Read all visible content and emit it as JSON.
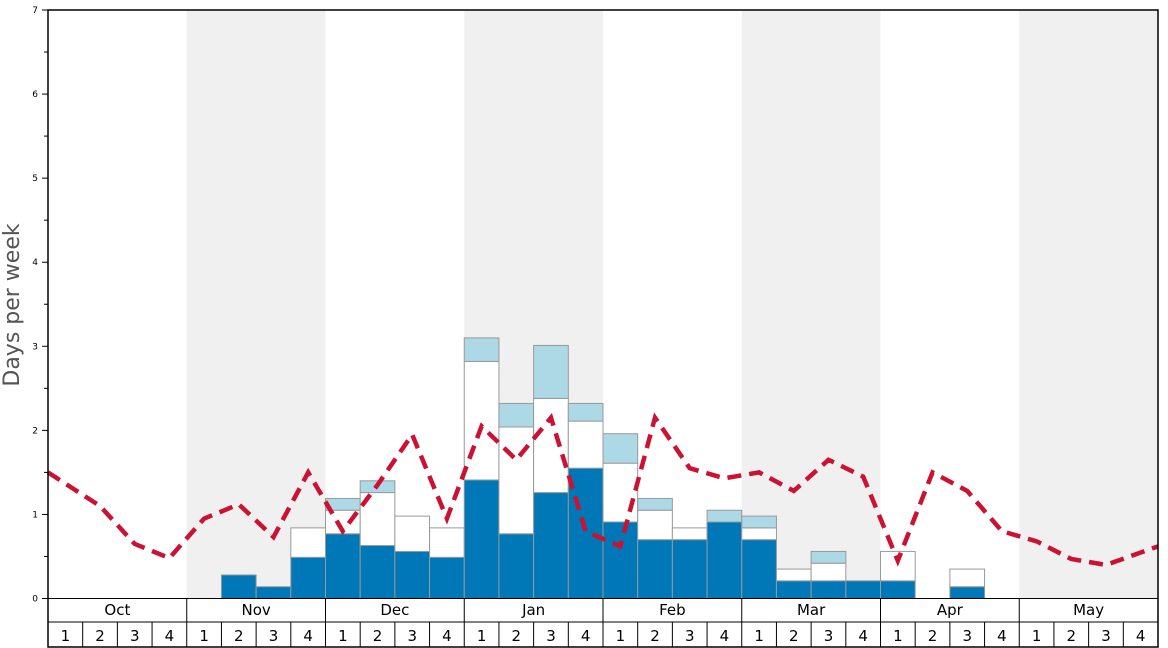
{
  "chart_data": {
    "type": "bar",
    "ylabel": "Days per week",
    "ylim": [
      0,
      7
    ],
    "yticks": [
      0,
      1,
      2,
      3,
      4,
      5,
      6,
      7
    ],
    "months": [
      "Oct",
      "Nov",
      "Dec",
      "Jan",
      "Feb",
      "Mar",
      "Apr",
      "May"
    ],
    "weeks": [
      "1",
      "2",
      "3",
      "4"
    ],
    "shaded_months": [
      "Nov",
      "Jan",
      "Mar",
      "May"
    ],
    "colors": {
      "dark": "#0077b6",
      "white": "#ffffff",
      "light": "#add8e6",
      "line": "#cc1133",
      "shade": "#f0f0f0"
    },
    "series": [
      {
        "values": [
          0,
          0,
          0,
          0,
          0,
          0.28,
          0.14,
          0.49,
          0.77,
          0.63,
          0.56,
          0.49,
          1.41,
          0.77,
          1.26,
          1.55,
          0.91,
          0.7,
          0.7,
          0.91,
          0.7,
          0.21,
          0.21,
          0.21,
          0.21,
          0,
          0.14,
          0,
          0,
          0,
          0,
          0
        ]
      },
      {
        "values": [
          0,
          0,
          0,
          0,
          0,
          0,
          0,
          0.35,
          0.28,
          0.63,
          0.42,
          0.35,
          1.41,
          1.27,
          1.12,
          0.56,
          0.7,
          0.35,
          0.14,
          0,
          0.14,
          0.14,
          0.21,
          0,
          0.35,
          0,
          0.21,
          0,
          0,
          0,
          0,
          0
        ]
      },
      {
        "values": [
          0,
          0,
          0,
          0,
          0,
          0,
          0,
          0,
          0.14,
          0.14,
          0,
          0,
          0.28,
          0.28,
          0.63,
          0.21,
          0.35,
          0.14,
          0,
          0.14,
          0.14,
          0,
          0.14,
          0,
          0,
          0,
          0,
          0,
          0,
          0,
          0,
          0
        ]
      },
      {
        "style": "dashed",
        "values": [
          1.5,
          1.1,
          0.65,
          0.48,
          0.95,
          1.12,
          0.73,
          1.5,
          0.8,
          1.35,
          1.95,
          0.95,
          2.05,
          1.65,
          2.15,
          0.8,
          0.62,
          2.15,
          1.55,
          1.43,
          1.5,
          1.28,
          1.65,
          1.45,
          0.45,
          1.5,
          1.28,
          0.8,
          0.68,
          0.47,
          0.4,
          0.62
        ]
      }
    ]
  }
}
